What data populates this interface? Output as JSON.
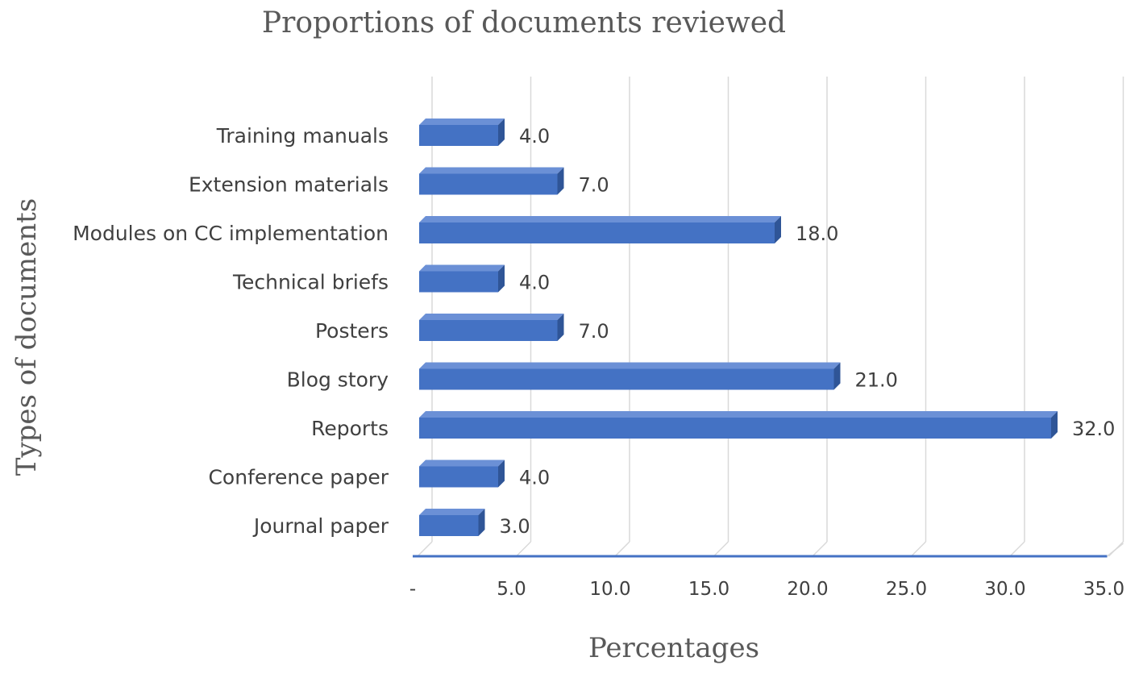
{
  "chart_data": {
    "type": "bar",
    "orientation": "horizontal",
    "style": "3d",
    "title": "Proportions of documents reviewed",
    "xlabel": "Percentages",
    "ylabel": "Types of documents",
    "categories": [
      "Training manuals",
      "Extension materials",
      "Modules on CC implementation",
      "Technical briefs",
      "Posters",
      "Blog story",
      "Reports",
      "Conference paper",
      "Journal paper"
    ],
    "values": [
      4.0,
      7.0,
      18.0,
      4.0,
      7.0,
      21.0,
      32.0,
      4.0,
      3.0
    ],
    "value_labels": [
      "4.0",
      "7.0",
      "18.0",
      "4.0",
      "7.0",
      "21.0",
      "32.0",
      "4.0",
      "3.0"
    ],
    "xticks": [
      0,
      5,
      10,
      15,
      20,
      25,
      30,
      35
    ],
    "xtick_labels": [
      "-",
      "5.0",
      "10.0",
      "15.0",
      "20.0",
      "25.0",
      "30.0",
      "35.0"
    ],
    "xlim": [
      0,
      35
    ],
    "grid": "vertical",
    "legend": "none",
    "colors": {
      "bar_front": "#4472C4",
      "bar_top": "#6B90D6",
      "bar_side": "#2F5597",
      "axis_line": "#4472C4",
      "grid": "#D9D9D9"
    }
  }
}
